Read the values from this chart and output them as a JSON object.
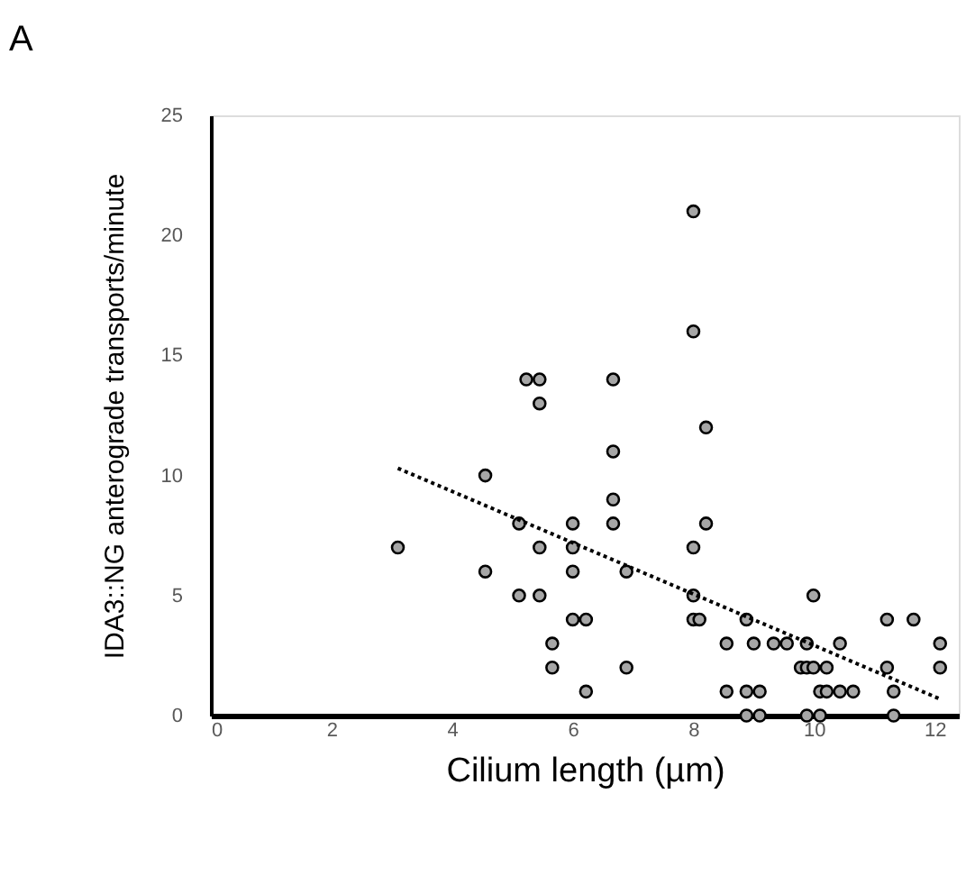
{
  "chart_data": {
    "type": "scatter",
    "annotations": [
      "A"
    ],
    "xlabel": "Cilium length (µm)",
    "ylabel": "IDA3::NG anterograde transports/minute",
    "xlim": [
      0,
      12.4
    ],
    "xticks": [
      0,
      2,
      4,
      6,
      8,
      10,
      12
    ],
    "ylim": [
      0,
      25
    ],
    "yticks": [
      0,
      5,
      10,
      15,
      20,
      25
    ],
    "grid": false,
    "series": [
      {
        "color": "#a6a6a6",
        "x": [
          3.1,
          4.55,
          4.55,
          5.11,
          5.11,
          5.45,
          5.23,
          5.45,
          5.45,
          5.45,
          5.66,
          5.66,
          6.0,
          6.0,
          6.0,
          6.0,
          6.22,
          6.22,
          6.67,
          6.67,
          6.67,
          6.67,
          6.89,
          6.89,
          8.0,
          8.0,
          8.21,
          8.21,
          8.0,
          8.0,
          8.0,
          8.1,
          8.55,
          8.55,
          8.88,
          8.88,
          9.1,
          8.88,
          9.1,
          9.0,
          9.33,
          9.55,
          9.88,
          9.99,
          9.78,
          9.88,
          9.99,
          10.21,
          10.1,
          10.21,
          10.43,
          10.65,
          9.88,
          10.1,
          10.43,
          11.21,
          11.65,
          11.21,
          11.32,
          11.32,
          12.09,
          12.09
        ],
        "values": [
          7,
          10,
          6,
          8,
          5,
          5,
          14,
          14,
          13,
          7,
          3,
          2,
          8,
          7,
          6,
          4,
          4,
          1,
          14,
          11,
          9,
          8,
          6,
          2,
          21,
          16,
          12,
          8,
          7,
          5,
          4,
          4,
          3,
          1,
          4,
          1,
          1,
          0,
          0,
          3,
          3,
          3,
          3,
          5,
          2,
          2,
          2,
          2,
          1,
          1,
          1,
          1,
          0,
          0,
          3,
          4,
          4,
          2,
          1,
          0,
          3,
          2
        ]
      },
      {
        "type": "line",
        "color": "#000000",
        "line_style": "dotted",
        "x": [
          3.1,
          12.08
        ],
        "values": [
          10.3,
          0.7
        ]
      }
    ]
  }
}
